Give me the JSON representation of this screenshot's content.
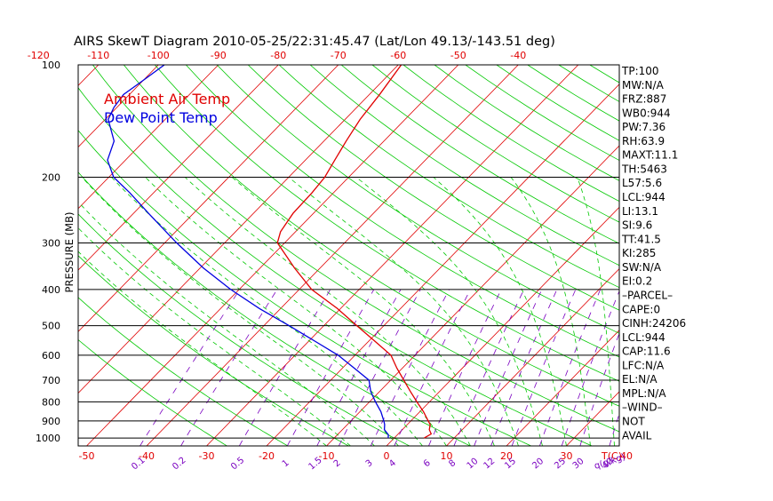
{
  "colors": {
    "temp": "#e00000",
    "dew": "#0000e0",
    "isotherm": "#e00000",
    "dry_adiabat": "#00c800",
    "moist_adiabat": "#00c800",
    "mixing_ratio": "#7a00c0",
    "isobar": "#000000"
  },
  "chart_data": {
    "type": "line",
    "title": "AIRS SkewT Diagram 2010-05-25/22:31:45.47 (Lat/Lon 49.13/-143.51 deg)",
    "ylabel": "PRESSURE (MB)",
    "y_scale": "log",
    "ylim": [
      1050,
      100
    ],
    "xlim": [
      -50,
      40
    ],
    "x_ticks": [
      "-50",
      "-40",
      "-30",
      "-20",
      "-10",
      "0",
      "10",
      "20",
      "30",
      "40"
    ],
    "x_unit_label": "T(C)",
    "top_ticks": [
      "-120",
      "-110",
      "-100",
      "-90",
      "-80",
      "-70",
      "-60",
      "-50",
      "-40"
    ],
    "y_ticks": [
      "100",
      "200",
      "300",
      "400",
      "500",
      "600",
      "700",
      "800",
      "900",
      "1000"
    ],
    "mixing_ratio_labels": [
      "0.1",
      "0.2",
      "0.5",
      "1",
      "1.5",
      "2",
      "3",
      "4",
      "6",
      "8",
      "10",
      "12",
      "15",
      "20",
      "25",
      "30",
      "40"
    ],
    "mixing_ratio_unit_label": "q(g/kg)",
    "legend": [
      "Ambient Air Temp",
      "Dew Point Temp"
    ],
    "legend_position": "top-left",
    "series": [
      {
        "name": "Ambient Air Temp",
        "points": [
          {
            "p": 1000,
            "t": 5.0
          },
          {
            "p": 975,
            "t": 5.5
          },
          {
            "p": 950,
            "t": 4.5
          },
          {
            "p": 920,
            "t": 3.8
          },
          {
            "p": 900,
            "t": 2.9
          },
          {
            "p": 850,
            "t": 0.6
          },
          {
            "p": 800,
            "t": -2.1
          },
          {
            "p": 750,
            "t": -4.9
          },
          {
            "p": 700,
            "t": -7.8
          },
          {
            "p": 650,
            "t": -10.9
          },
          {
            "p": 600,
            "t": -14.0
          },
          {
            "p": 550,
            "t": -19.0
          },
          {
            "p": 500,
            "t": -24.5
          },
          {
            "p": 450,
            "t": -30.5
          },
          {
            "p": 400,
            "t": -37.9
          },
          {
            "p": 350,
            "t": -44.3
          },
          {
            "p": 300,
            "t": -51.2
          },
          {
            "p": 280,
            "t": -52.5
          },
          {
            "p": 250,
            "t": -53.4
          },
          {
            "p": 220,
            "t": -53.6
          },
          {
            "p": 200,
            "t": -54.0
          },
          {
            "p": 180,
            "t": -55.1
          },
          {
            "p": 160,
            "t": -56.3
          },
          {
            "p": 140,
            "t": -57.5
          },
          {
            "p": 120,
            "t": -58.3
          },
          {
            "p": 100,
            "t": -59.5
          }
        ]
      },
      {
        "name": "Dew Point Temp",
        "points": [
          {
            "p": 1000,
            "t": -1.0
          },
          {
            "p": 980,
            "t": -1.5
          },
          {
            "p": 950,
            "t": -3.0
          },
          {
            "p": 920,
            "t": -3.8
          },
          {
            "p": 900,
            "t": -4.5
          },
          {
            "p": 850,
            "t": -6.5
          },
          {
            "p": 800,
            "t": -9.0
          },
          {
            "p": 750,
            "t": -11.5
          },
          {
            "p": 700,
            "t": -13.6
          },
          {
            "p": 650,
            "t": -18.0
          },
          {
            "p": 600,
            "t": -22.8
          },
          {
            "p": 550,
            "t": -29.0
          },
          {
            "p": 500,
            "t": -35.8
          },
          {
            "p": 450,
            "t": -43.5
          },
          {
            "p": 400,
            "t": -51.4
          },
          {
            "p": 350,
            "t": -59.5
          },
          {
            "p": 300,
            "t": -68.0
          },
          {
            "p": 250,
            "t": -77.5
          },
          {
            "p": 220,
            "t": -84.0
          },
          {
            "p": 200,
            "t": -89.2
          },
          {
            "p": 180,
            "t": -93.0
          },
          {
            "p": 160,
            "t": -95.0
          },
          {
            "p": 140,
            "t": -99.5
          },
          {
            "p": 130,
            "t": -100.5
          },
          {
            "p": 120,
            "t": -101.0
          },
          {
            "p": 110,
            "t": -100.0
          },
          {
            "p": 100,
            "t": -99.0
          }
        ]
      }
    ]
  },
  "indices": [
    "TP:100",
    "MW:N/A",
    "FRZ:887",
    "WB0:944",
    "PW:7.36",
    "RH:63.9",
    "MAXT:11.1",
    "TH:5463",
    "L57:5.6",
    "LCL:944",
    "LI:13.1",
    "SI:9.6",
    "TT:41.5",
    "KI:285",
    "SW:N/A",
    "EI:0.2",
    "–PARCEL–",
    "CAPE:0",
    "CINH:24206",
    "LCL:944",
    "CAP:11.6",
    "LFC:N/A",
    "EL:N/A",
    "MPL:N/A",
    "–WIND–",
    "NOT",
    "AVAIL"
  ]
}
